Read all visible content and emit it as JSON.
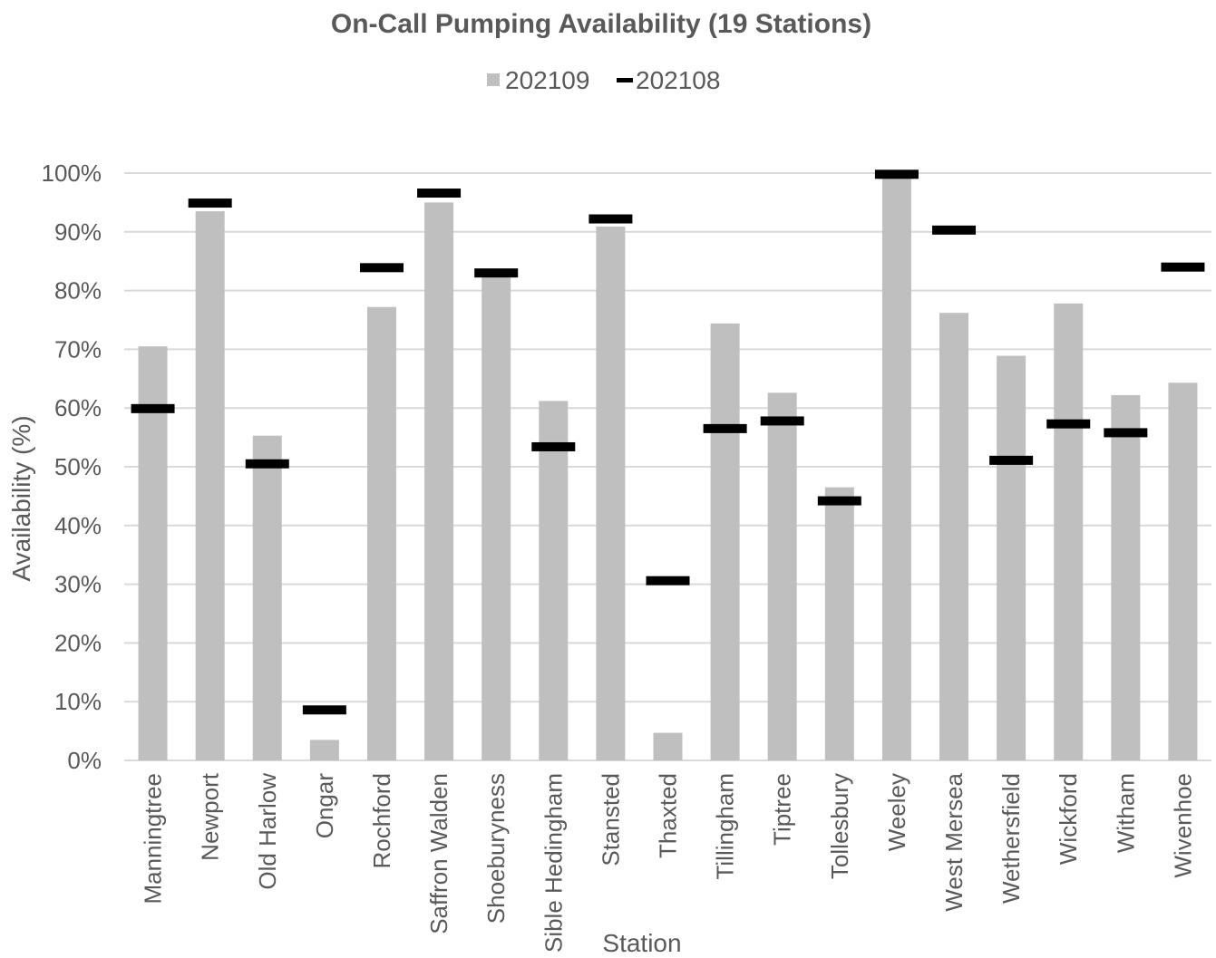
{
  "chart_data": {
    "type": "bar",
    "title": "On-Call Pumping Availability (19 Stations)",
    "xlabel": "Station",
    "ylabel": "Availability  (%)",
    "ylim": [
      0,
      100
    ],
    "yticks": [
      "0%",
      "10%",
      "20%",
      "30%",
      "40%",
      "50%",
      "60%",
      "70%",
      "80%",
      "90%",
      "100%"
    ],
    "grid": true,
    "legend_position": "top",
    "categories": [
      "Manningtree",
      "Newport",
      "Old Harlow",
      "Ongar",
      "Rochford",
      "Saffron Walden",
      "Shoeburyness",
      "Sible Hedingham",
      "Stansted",
      "Thaxted",
      "Tillingham",
      "Tiptree",
      "Tollesbury",
      "Weeley",
      "West Mersea",
      "Wethersfield",
      "Wickford",
      "Witham",
      "Wivenhoe"
    ],
    "series": [
      {
        "name": "202109",
        "type": "bar",
        "color": "#bfbfbf",
        "values": [
          70.5,
          93.5,
          55.3,
          3.5,
          77.2,
          95.0,
          82.5,
          61.2,
          90.9,
          4.7,
          74.4,
          62.6,
          46.5,
          99.8,
          76.2,
          68.9,
          77.8,
          62.2,
          64.3
        ]
      },
      {
        "name": "202108",
        "type": "marker",
        "color": "#000000",
        "values": [
          59.9,
          94.9,
          50.5,
          8.6,
          83.9,
          96.6,
          83.0,
          53.4,
          92.2,
          30.6,
          56.5,
          57.8,
          44.2,
          99.8,
          90.3,
          51.1,
          57.3,
          55.8,
          84.0
        ]
      }
    ]
  }
}
